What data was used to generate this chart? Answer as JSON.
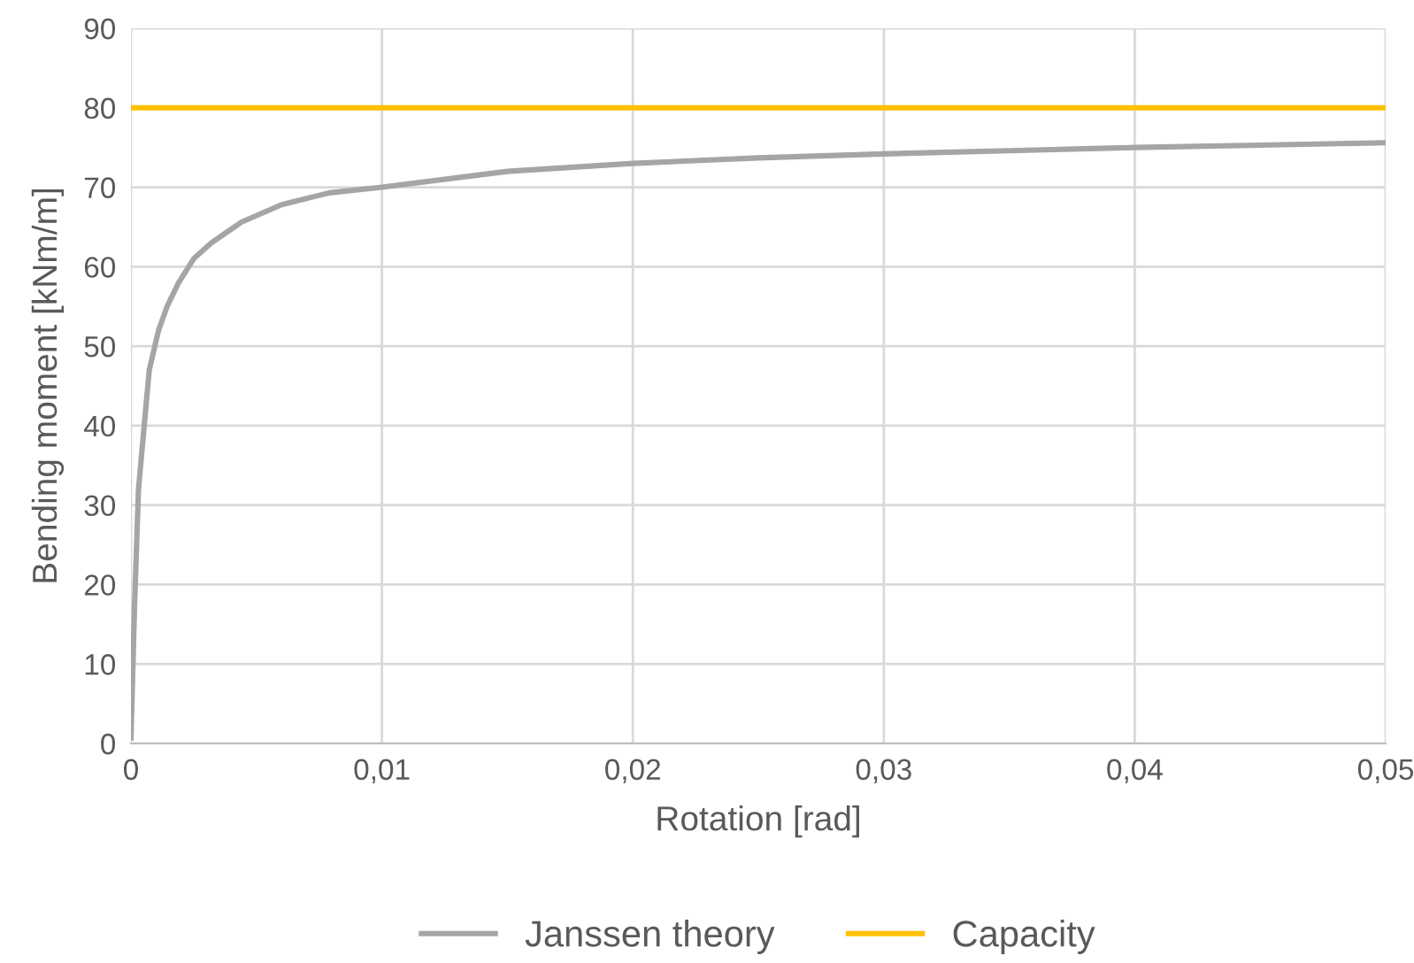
{
  "chart_data": {
    "type": "line",
    "xlabel": "Rotation [rad]",
    "ylabel": "Bending moment [kNm/m]",
    "series": [
      {
        "name": "Janssen theory",
        "color": "#a5a5a5",
        "x": [
          0,
          0.00014,
          0.0003,
          0.0005,
          0.00073,
          0.0011,
          0.00144,
          0.0019,
          0.0025,
          0.0032,
          0.0044,
          0.006,
          0.0079,
          0.01,
          0.015,
          0.02,
          0.025,
          0.03,
          0.035,
          0.04,
          0.045,
          0.05
        ],
        "values": [
          0.7,
          17,
          32,
          39,
          47,
          52,
          55,
          58,
          61,
          63,
          65.6,
          67.8,
          69.3,
          70,
          72,
          73,
          73.7,
          74.2,
          74.6,
          75,
          75.3,
          75.6
        ]
      },
      {
        "name": "Capacity",
        "color": "#ffc000",
        "x": [
          0,
          0.05
        ],
        "values": [
          80,
          80
        ]
      }
    ],
    "xlim": [
      0,
      0.05
    ],
    "ylim": [
      0,
      90
    ],
    "xticks": [
      0,
      {
        "value": 0.01,
        "label": "0,01"
      },
      {
        "value": 0.02,
        "label": "0,02"
      },
      {
        "value": 0.03,
        "label": "0,03"
      },
      {
        "value": 0.04,
        "label": "0,04"
      },
      {
        "value": 0.05,
        "label": "0,05"
      }
    ],
    "yticks": [
      0,
      10,
      20,
      30,
      40,
      50,
      60,
      70,
      80,
      90
    ],
    "grid": true,
    "legend": "bottom",
    "marker": "none",
    "line_style": "solid"
  }
}
